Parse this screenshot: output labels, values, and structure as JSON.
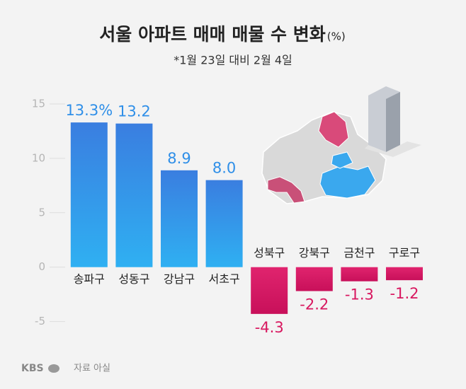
{
  "chart_data": {
    "type": "bar",
    "title": "서울 아파트 매매 매물 수 변화",
    "title_unit": "(%)",
    "subtitle": "*1월 23일 대비 2월 4일",
    "categories": [
      "송파구",
      "성동구",
      "강남구",
      "서초구",
      "성북구",
      "강북구",
      "금천구",
      "구로구"
    ],
    "values": [
      13.3,
      13.2,
      8.9,
      8.0,
      -4.3,
      -2.2,
      -1.3,
      -1.2
    ],
    "value_labels": [
      "13.3%",
      "13.2",
      "8.9",
      "8.0",
      "-4.3",
      "-2.2",
      "-1.3",
      "-1.2"
    ],
    "color_positive": "#2f8fe8",
    "color_negative": "#d8175f",
    "ylim": [
      -6,
      16
    ],
    "yticks": [
      15,
      10,
      5,
      0,
      -5
    ],
    "source": "자료 아실",
    "logo": "KBS"
  }
}
